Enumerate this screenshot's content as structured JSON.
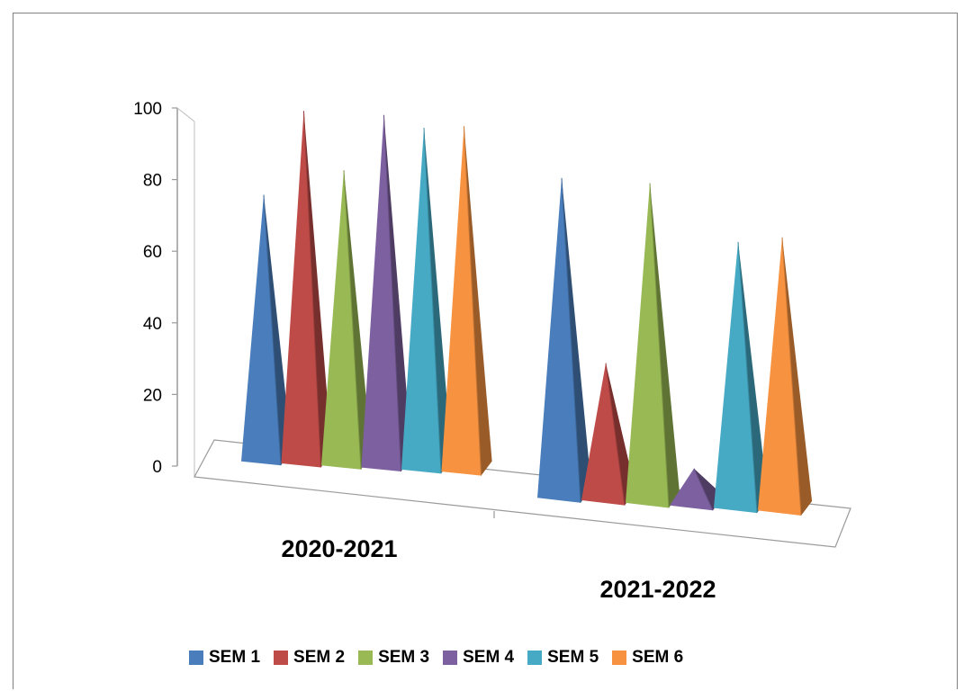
{
  "chart_data": {
    "type": "bar",
    "style": "3d-pyramid",
    "categories": [
      "2020-2021",
      "2021-2022"
    ],
    "series": [
      {
        "name": "SEM 1",
        "values": [
          75,
          90
        ],
        "color": "#4A7DBB"
      },
      {
        "name": "SEM 2",
        "values": [
          99,
          39
        ],
        "color": "#BE4B48"
      },
      {
        "name": "SEM 3",
        "values": [
          83,
          90
        ],
        "color": "#98B954"
      },
      {
        "name": "SEM 4",
        "values": [
          99,
          11
        ],
        "color": "#7D60A0"
      },
      {
        "name": "SEM 5",
        "values": [
          96,
          75
        ],
        "color": "#46AAC5"
      },
      {
        "name": "SEM 6",
        "values": [
          97,
          77
        ],
        "color": "#F69240"
      }
    ],
    "ylim": [
      0,
      100
    ],
    "yticks": [
      "0",
      "20",
      "40",
      "60",
      "80",
      "100"
    ],
    "legend_position": "bottom",
    "grid": false
  }
}
